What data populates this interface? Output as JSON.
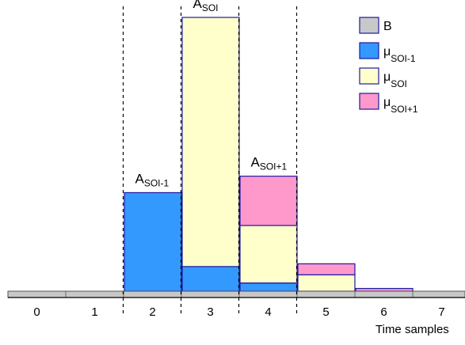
{
  "colors": {
    "B": "#c8c8c8",
    "mu_prev": "#3399ff",
    "mu_cur": "#ffffcc",
    "mu_next": "#ff99cc",
    "outline": "#1a1aa6"
  },
  "chart_data": {
    "type": "bar",
    "stacked": true,
    "x": [
      0,
      1,
      2,
      3,
      4,
      5,
      6,
      7
    ],
    "xlabel": "Time samples",
    "ylabel": "",
    "ylim": [
      0,
      100
    ],
    "grid": false,
    "legend_position": "top-right",
    "series": [
      {
        "key": "B",
        "name": "B",
        "legend_main": "B",
        "legend_sub": "",
        "values": [
          3,
          3,
          3,
          3,
          3,
          3,
          3,
          3
        ]
      },
      {
        "key": "mu_prev",
        "name": "μSOI-1",
        "legend_main": "μ",
        "legend_sub": "SOI-1",
        "values": [
          0,
          0,
          36,
          9,
          3,
          0,
          0,
          0
        ]
      },
      {
        "key": "mu_cur",
        "name": "μSOI",
        "legend_main": "μ",
        "legend_sub": "SOI",
        "values": [
          0,
          0,
          0,
          91,
          21,
          6,
          0,
          0
        ]
      },
      {
        "key": "mu_next",
        "name": "μSOI+1",
        "legend_main": "μ",
        "legend_sub": "SOI+1",
        "values": [
          0,
          0,
          0,
          0,
          18,
          4,
          1,
          0
        ]
      }
    ],
    "boundaries": [
      1.5,
      2.5,
      3.5,
      4.5
    ],
    "annotations": [
      {
        "main": "A",
        "sub": "SOI-1",
        "x": 2
      },
      {
        "main": "A",
        "sub": "SOI",
        "x": 3
      },
      {
        "main": "A",
        "sub": "SOI+1",
        "x": 4
      }
    ]
  }
}
